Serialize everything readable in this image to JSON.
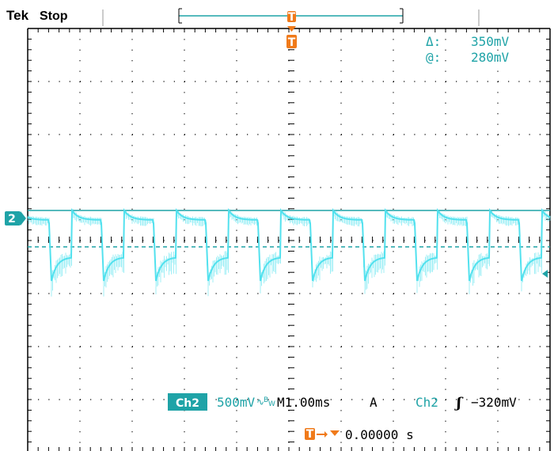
{
  "header": {
    "brand": "Tek",
    "status": "Stop"
  },
  "cursor_readout": {
    "delta_symbol": "Δ:",
    "delta_value": "350mV",
    "at_symbol": "@:",
    "at_value": "280mV"
  },
  "channel_marker": "2",
  "settings": {
    "channel_badge": "Ch2",
    "volts_per_div": "500mV",
    "bw_symbol": "∿",
    "bw_sub": "B",
    "bw_suffix": "W",
    "timebase": "M1.00ms",
    "trigger_mode": "A",
    "trigger_source": "Ch2",
    "trigger_slope": "ʃ",
    "trigger_level": "−320mV"
  },
  "trigger_badge": "T",
  "trigger_offset": "0.00000 s",
  "colors": {
    "trace": "#52e1ee",
    "trace_text": "#1fa3a7",
    "trigger_orange": "#f07a1a",
    "grid": "#000000"
  }
}
